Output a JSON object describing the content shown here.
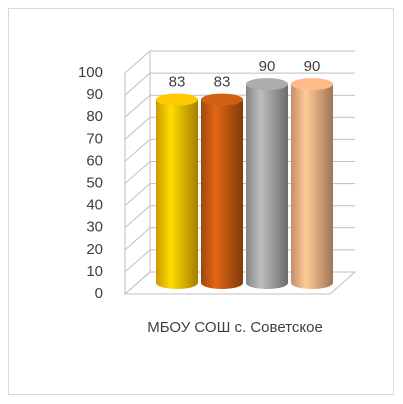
{
  "chart_data": {
    "type": "bar3d",
    "categories": [
      "МБОУ СОШ с. Советское"
    ],
    "series": [
      {
        "color": "#ffc000",
        "values": [
          83
        ]
      },
      {
        "color": "#c55a11",
        "values": [
          83
        ]
      },
      {
        "color": "#a5a5a5",
        "values": [
          90
        ]
      },
      {
        "color": "#f4b183",
        "values": [
          90
        ]
      }
    ],
    "ylim": [
      0,
      100
    ],
    "yticks": [
      0,
      10,
      20,
      30,
      40,
      50,
      60,
      70,
      80,
      90,
      100
    ],
    "grid": true
  }
}
